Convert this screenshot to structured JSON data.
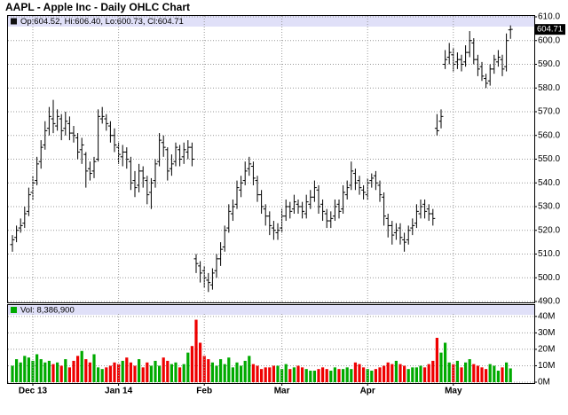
{
  "chart_data": [
    {
      "type": "ohlc",
      "title": "AAPL - Apple Inc - Daily OHLC Chart",
      "subtitle": "Op:604.52, Hi:606.40, Lo:600.73, Cl:604.71",
      "color": "#000000",
      "grid": true,
      "ylim": [
        490,
        610
      ],
      "yticks": [
        {
          "value": 490,
          "label": "490.0"
        },
        {
          "value": 500,
          "label": "500.0"
        },
        {
          "value": 510,
          "label": "510.0"
        },
        {
          "value": 520,
          "label": "520.0"
        },
        {
          "value": 530,
          "label": "530.0"
        },
        {
          "value": 540,
          "label": "540.0"
        },
        {
          "value": 550,
          "label": "550.0"
        },
        {
          "value": 560,
          "label": "560.0"
        },
        {
          "value": 570,
          "label": "570.0"
        },
        {
          "value": 580,
          "label": "580.0"
        },
        {
          "value": 590,
          "label": "590.0"
        },
        {
          "value": 600,
          "label": "600.0"
        },
        {
          "value": 610,
          "label": "610.0"
        }
      ],
      "open": [
        514,
        517,
        521,
        523,
        528,
        536,
        541,
        549,
        556,
        563,
        567,
        564,
        567,
        563,
        565,
        561,
        559,
        554,
        552,
        546,
        545,
        550,
        567,
        567,
        564,
        560,
        555,
        551,
        553,
        549,
        541,
        539,
        545,
        541,
        536,
        541,
        549,
        557,
        554,
        546,
        549,
        554,
        551,
        553,
        555,
        508,
        505,
        503,
        499,
        497,
        503,
        508,
        513,
        521,
        527,
        531,
        537,
        541,
        546,
        547,
        541,
        535,
        529,
        526,
        521,
        519,
        521,
        526,
        530,
        529,
        531,
        530,
        527,
        531,
        534,
        537,
        531,
        527,
        524,
        526,
        531,
        529,
        535,
        539,
        544,
        541,
        537,
        535,
        541,
        543,
        539,
        534,
        525,
        522,
        519,
        521,
        516,
        516,
        521,
        523,
        527,
        531,
        529,
        527,
        563,
        566,
        590,
        593,
        594,
        591,
        592,
        591,
        595,
        599,
        592,
        589,
        584,
        583,
        588,
        591,
        592,
        589,
        604.52
      ],
      "high": [
        518,
        522,
        525,
        530,
        538,
        543,
        551,
        558,
        566,
        572,
        575,
        571,
        569,
        570,
        568,
        564,
        561,
        559,
        553,
        549,
        551,
        571,
        572,
        569,
        566,
        563,
        557,
        556,
        555,
        551,
        545,
        548,
        547,
        543,
        542,
        550,
        561,
        560,
        555,
        552,
        557,
        556,
        557,
        558,
        557,
        510,
        507,
        505,
        502,
        504,
        510,
        515,
        522,
        531,
        533,
        541,
        543,
        549,
        551,
        549,
        543,
        537,
        531,
        528,
        524,
        523,
        529,
        533,
        532,
        535,
        533,
        532,
        535,
        537,
        541,
        539,
        533,
        529,
        528,
        533,
        533,
        539,
        541,
        549,
        546,
        543,
        539,
        542,
        544,
        545,
        541,
        536,
        527,
        524,
        523,
        523,
        519,
        522,
        525,
        531,
        533,
        533,
        531,
        529,
        569,
        571,
        596,
        599,
        597,
        595,
        594,
        598,
        604,
        601,
        594,
        591,
        586,
        590,
        594,
        596,
        594,
        603,
        606.4
      ],
      "low": [
        511,
        515,
        519,
        521,
        526,
        533,
        539,
        546,
        554,
        560,
        561,
        562,
        558,
        560,
        558,
        557,
        550,
        548,
        538,
        541,
        542,
        549,
        565,
        562,
        557,
        553,
        548,
        547,
        546,
        537,
        534,
        536,
        538,
        531,
        529,
        538,
        547,
        551,
        541,
        543,
        547,
        547,
        548,
        550,
        547,
        502,
        498,
        496,
        494,
        495,
        500,
        505,
        511,
        519,
        524,
        529,
        534,
        539,
        543,
        539,
        532,
        527,
        522,
        518,
        516,
        516,
        519,
        524,
        525,
        527,
        527,
        525,
        525,
        529,
        532,
        527,
        524,
        521,
        521,
        524,
        525,
        527,
        533,
        537,
        537,
        535,
        533,
        533,
        538,
        537,
        532,
        522,
        517,
        514,
        516,
        514,
        511,
        514,
        518,
        521,
        525,
        525,
        524,
        522,
        560,
        563,
        588,
        590,
        587,
        588,
        587,
        589,
        593,
        590,
        585,
        583,
        580,
        581,
        586,
        589,
        585,
        587,
        600.73
      ],
      "close": [
        516,
        520,
        522,
        527,
        535,
        540,
        548,
        555,
        562,
        568,
        565,
        568,
        562,
        566,
        561,
        560,
        553,
        556,
        545,
        544,
        549,
        568,
        568,
        565,
        560,
        556,
        552,
        553,
        550,
        540,
        538,
        545,
        542,
        535,
        540,
        548,
        558,
        555,
        545,
        548,
        555,
        550,
        554,
        555,
        550,
        506,
        502,
        500,
        498,
        502,
        508,
        512,
        520,
        528,
        530,
        538,
        540,
        545,
        548,
        542,
        535,
        530,
        526,
        522,
        520,
        520,
        526,
        530,
        528,
        532,
        530,
        528,
        532,
        534,
        538,
        530,
        528,
        524,
        525,
        530,
        528,
        536,
        538,
        545,
        540,
        538,
        536,
        540,
        542,
        540,
        535,
        526,
        522,
        518,
        520,
        517,
        515,
        520,
        522,
        528,
        530,
        528,
        527,
        525,
        562,
        568,
        592,
        595,
        590,
        592,
        590,
        595,
        600,
        592,
        588,
        585,
        582,
        588,
        592,
        593,
        588,
        600,
        604.71
      ]
    },
    {
      "type": "bar",
      "subtitle": "Vol: 8,386,900",
      "up_color": "#00aa00",
      "down_color": "#ee0000",
      "grid": true,
      "ylim": [
        0,
        41
      ],
      "yticks": [
        {
          "value": 0,
          "label": "0M"
        },
        {
          "value": 10,
          "label": "10M"
        },
        {
          "value": 20,
          "label": "20M"
        },
        {
          "value": 30,
          "label": "30M"
        },
        {
          "value": 40,
          "label": "40M"
        }
      ],
      "categories": [
        null,
        null,
        null,
        null,
        null,
        "Dec 13",
        null,
        null,
        null,
        null,
        null,
        null,
        null,
        null,
        null,
        null,
        null,
        null,
        null,
        null,
        null,
        null,
        null,
        null,
        null,
        null,
        "Jan 14",
        null,
        null,
        null,
        null,
        null,
        null,
        null,
        null,
        null,
        null,
        null,
        null,
        null,
        null,
        null,
        null,
        null,
        null,
        null,
        null,
        "Feb",
        null,
        null,
        null,
        null,
        null,
        null,
        null,
        null,
        null,
        null,
        null,
        null,
        null,
        null,
        null,
        null,
        null,
        null,
        "Mar",
        null,
        null,
        null,
        null,
        null,
        null,
        null,
        null,
        null,
        null,
        null,
        null,
        null,
        null,
        null,
        null,
        null,
        null,
        null,
        null,
        "Apr",
        null,
        null,
        null,
        null,
        null,
        null,
        null,
        null,
        null,
        null,
        null,
        null,
        null,
        null,
        null,
        null,
        null,
        null,
        null,
        null,
        "May",
        null,
        null,
        null,
        null,
        null,
        null,
        null,
        null,
        null,
        null,
        null,
        null,
        null,
        null
      ],
      "values": [
        10,
        14,
        12,
        16,
        15,
        13,
        17,
        14,
        12,
        13,
        11,
        12,
        10,
        14,
        9,
        13,
        16,
        19,
        14,
        12,
        17,
        9,
        8,
        9,
        10,
        12,
        11,
        13,
        15,
        12,
        10,
        14,
        9,
        12,
        10,
        13,
        10,
        15,
        13,
        11,
        12,
        9,
        11,
        18,
        22,
        38,
        24,
        16,
        14,
        12,
        10,
        14,
        11,
        15,
        9,
        12,
        10,
        13,
        16,
        11,
        10,
        8,
        9,
        9,
        10,
        10,
        8,
        11,
        8,
        9,
        10,
        9,
        8,
        7,
        7,
        8,
        9,
        8,
        7,
        9,
        8,
        8,
        9,
        8,
        12,
        11,
        9,
        8,
        7,
        8,
        9,
        10,
        12,
        11,
        13,
        11,
        10,
        8,
        9,
        9,
        10,
        9,
        11,
        13,
        27,
        18,
        24,
        12,
        11,
        13,
        9,
        12,
        14,
        11,
        10,
        9,
        8,
        11,
        10,
        7,
        9,
        12,
        8.3869
      ]
    }
  ]
}
